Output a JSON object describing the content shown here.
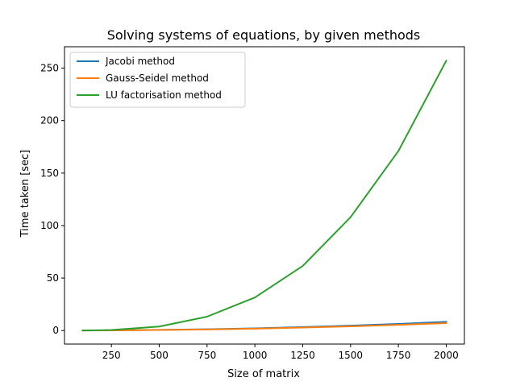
{
  "chart_data": {
    "type": "line",
    "title": "Solving systems of equations, by given methods",
    "xlabel": "Size of matrix",
    "ylabel": "Time taken [sec]",
    "xlim": [
      5,
      2095
    ],
    "ylim": [
      -12.9,
      270.4
    ],
    "xticks": [
      250,
      500,
      750,
      1000,
      1250,
      1500,
      1750,
      2000
    ],
    "yticks": [
      0,
      50,
      100,
      150,
      200,
      250
    ],
    "grid": false,
    "legend_position": "top-left",
    "x": [
      100,
      250,
      500,
      750,
      1000,
      1250,
      1500,
      1750,
      2000
    ],
    "series": [
      {
        "name": "Jacobi method",
        "color": "#1f77b4",
        "values": [
          0.05,
          0.2,
          0.6,
          1.2,
          2.1,
          3.3,
          4.7,
          6.3,
          8.3
        ]
      },
      {
        "name": "Gauss-Seidel method",
        "color": "#ff7f0e",
        "values": [
          0.05,
          0.15,
          0.5,
          1.0,
          1.8,
          2.8,
          4.0,
          5.4,
          7.0
        ]
      },
      {
        "name": "LU factorisation method",
        "color": "#2ca02c",
        "values": [
          0.1,
          0.5,
          3.8,
          13.2,
          31.5,
          61.5,
          108.0,
          171.0,
          257.0
        ]
      }
    ]
  }
}
